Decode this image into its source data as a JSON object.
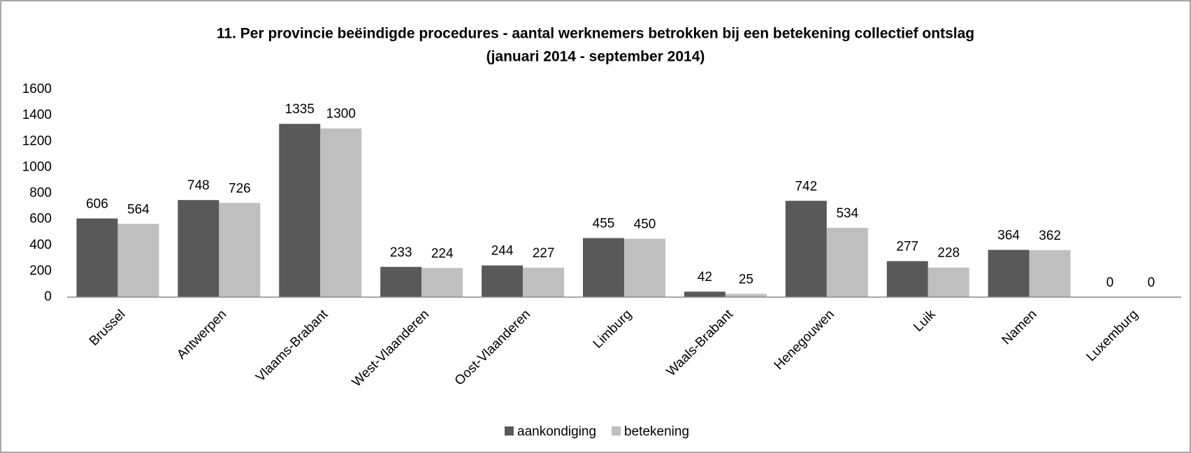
{
  "chart_data": {
    "type": "bar",
    "title": "11. Per provincie beëindigde procedures - aantal werknemers betrokken bij een betekening collectief ontslag",
    "subtitle": "(januari 2014 - september 2014)",
    "categories": [
      "Brussel",
      "Antwerpen",
      "Vlaams-Brabant",
      "West-Vlaanderen",
      "Oost-Vlaanderen",
      "Limburg",
      "Waals-Brabant",
      "Henegouwen",
      "Luik",
      "Namen",
      "Luxemburg"
    ],
    "series": [
      {
        "name": "aankondiging",
        "color": "#595959",
        "values": [
          606,
          748,
          1335,
          233,
          244,
          455,
          42,
          742,
          277,
          364,
          0
        ]
      },
      {
        "name": "betekening",
        "color": "#bfbfbf",
        "values": [
          564,
          726,
          1300,
          224,
          227,
          450,
          25,
          534,
          228,
          362,
          0
        ]
      }
    ],
    "ylim": [
      0,
      1600
    ],
    "yticks": [
      0,
      200,
      400,
      600,
      800,
      1000,
      1200,
      1400,
      1600
    ],
    "grid": false,
    "legend": "bottom"
  }
}
